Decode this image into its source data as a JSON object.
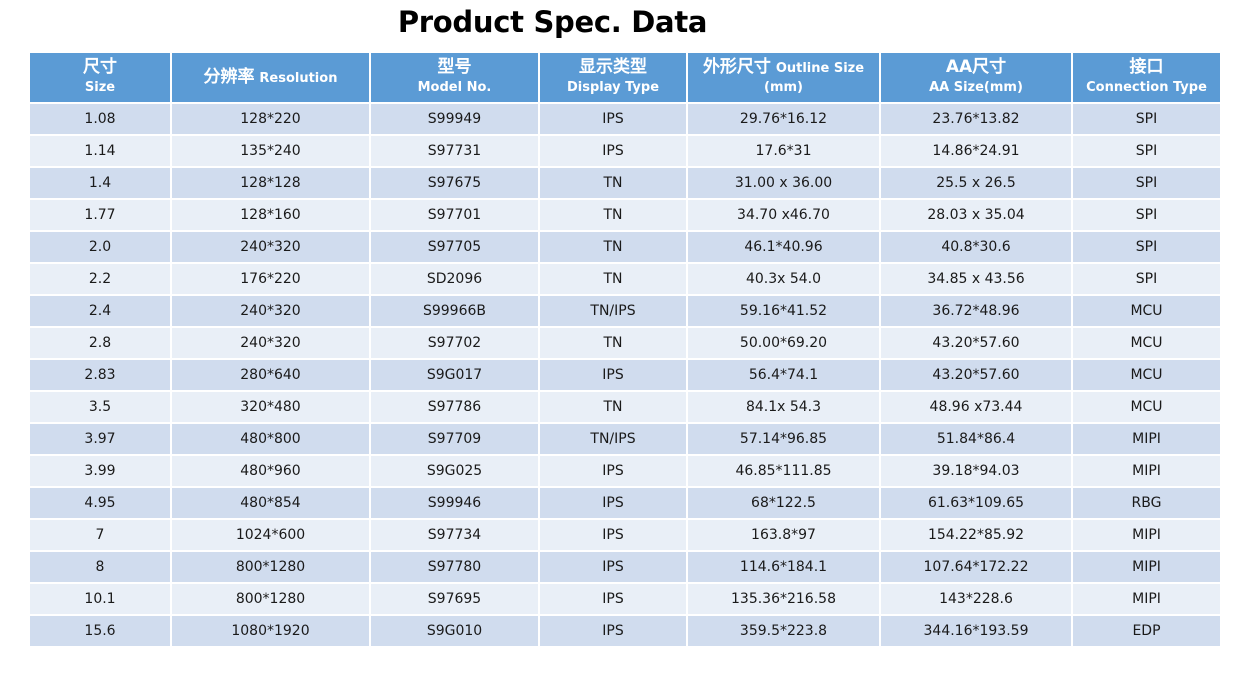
{
  "title": "Product Spec. Data",
  "headers": [
    {
      "cn": "尺寸",
      "en": "Size"
    },
    {
      "cn": "分辨率",
      "en": "Resolution"
    },
    {
      "cn": "型号",
      "en": "Model No."
    },
    {
      "cn": "显示类型",
      "en": "Display Type"
    },
    {
      "cn": "外形尺寸",
      "en": "Outline Size",
      "unit": "(mm)"
    },
    {
      "cn": "AA尺寸",
      "en": "AA Size(mm)"
    },
    {
      "cn": "接口",
      "en": "Connection Type"
    }
  ],
  "rows": [
    [
      "1.08",
      "128*220",
      "S99949",
      "IPS",
      "29.76*16.12",
      "23.76*13.82",
      "SPI"
    ],
    [
      "1.14",
      "135*240",
      "S97731",
      "IPS",
      "17.6*31",
      "14.86*24.91",
      "SPI"
    ],
    [
      "1.4",
      "128*128",
      "S97675",
      "TN",
      "31.00 x 36.00",
      "25.5 x 26.5",
      "SPI"
    ],
    [
      "1.77",
      "128*160",
      "S97701",
      "TN",
      "34.70 x46.70",
      "28.03 x 35.04",
      "SPI"
    ],
    [
      "2.0",
      "240*320",
      "S97705",
      "TN",
      "46.1*40.96",
      "40.8*30.6",
      "SPI"
    ],
    [
      "2.2",
      "176*220",
      "SD2096",
      "TN",
      "40.3x 54.0",
      "34.85 x 43.56",
      "SPI"
    ],
    [
      "2.4",
      "240*320",
      "S99966B",
      "TN/IPS",
      "59.16*41.52",
      "36.72*48.96",
      "MCU"
    ],
    [
      "2.8",
      "240*320",
      "S97702",
      "TN",
      "50.00*69.20",
      "43.20*57.60",
      "MCU"
    ],
    [
      "2.83",
      "280*640",
      "S9G017",
      "IPS",
      "56.4*74.1",
      "43.20*57.60",
      "MCU"
    ],
    [
      "3.5",
      "320*480",
      "S97786",
      "TN",
      "84.1x 54.3",
      "48.96 x73.44",
      "MCU"
    ],
    [
      "3.97",
      "480*800",
      "S97709",
      "TN/IPS",
      "57.14*96.85",
      "51.84*86.4",
      "MIPI"
    ],
    [
      "3.99",
      "480*960",
      "S9G025",
      "IPS",
      "46.85*111.85",
      "39.18*94.03",
      "MIPI"
    ],
    [
      "4.95",
      "480*854",
      "S99946",
      "IPS",
      "68*122.5",
      "61.63*109.65",
      "RBG"
    ],
    [
      "7",
      "1024*600",
      "S97734",
      "IPS",
      "163.8*97",
      "154.22*85.92",
      "MIPI"
    ],
    [
      "8",
      "800*1280",
      "S97780",
      "IPS",
      "114.6*184.1",
      "107.64*172.22",
      "MIPI"
    ],
    [
      "10.1",
      "800*1280",
      "S97695",
      "IPS",
      "135.36*216.58",
      "143*228.6",
      "MIPI"
    ],
    [
      "15.6",
      "1080*1920",
      "S9G010",
      "IPS",
      "359.5*223.8",
      "344.16*193.59",
      "EDP"
    ]
  ],
  "colors": {
    "header_bg": "#5b9bd5",
    "row_odd": "#d0dcee",
    "row_even": "#e9eff7"
  }
}
